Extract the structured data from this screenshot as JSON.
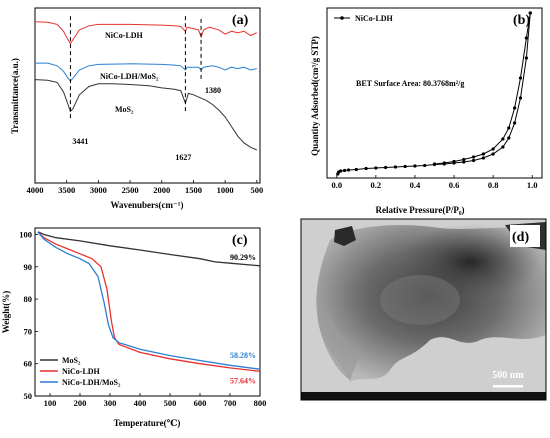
{
  "panels": {
    "a": {
      "letter": "(a)"
    },
    "b": {
      "letter": "(b)"
    },
    "c": {
      "letter": "(c)"
    },
    "d": {
      "letter": "(d)"
    }
  },
  "chart_data": [
    {
      "id": "a",
      "type": "line",
      "xlabel": "Wavenubers(cm⁻¹)",
      "ylabel": "Transmittance(a.u.)",
      "xlim": [
        4000,
        450
      ],
      "xticks": [
        "4000",
        "3500",
        "3000",
        "2500",
        "2000",
        "1500",
        "1000",
        "500"
      ],
      "series": [
        {
          "name": "NiCo-LDH",
          "color": "#e8312f",
          "points": [
            [
              4000,
              0.93
            ],
            [
              3800,
              0.925
            ],
            [
              3650,
              0.91
            ],
            [
              3550,
              0.86
            ],
            [
              3480,
              0.8
            ],
            [
              3441,
              0.77
            ],
            [
              3400,
              0.8
            ],
            [
              3300,
              0.87
            ],
            [
              3150,
              0.9
            ],
            [
              3000,
              0.91
            ],
            [
              2500,
              0.91
            ],
            [
              2000,
              0.905
            ],
            [
              1800,
              0.9
            ],
            [
              1700,
              0.895
            ],
            [
              1627,
              0.86
            ],
            [
              1600,
              0.89
            ],
            [
              1500,
              0.88
            ],
            [
              1420,
              0.87
            ],
            [
              1380,
              0.82
            ],
            [
              1340,
              0.87
            ],
            [
              1250,
              0.89
            ],
            [
              1100,
              0.87
            ],
            [
              1000,
              0.84
            ],
            [
              900,
              0.86
            ],
            [
              800,
              0.85
            ],
            [
              700,
              0.86
            ],
            [
              600,
              0.83
            ],
            [
              500,
              0.85
            ]
          ]
        },
        {
          "name": "NiCo-LDH/MoS₂",
          "color": "#2a7fd4",
          "points": [
            [
              4000,
              0.63
            ],
            [
              3800,
              0.63
            ],
            [
              3650,
              0.61
            ],
            [
              3550,
              0.57
            ],
            [
              3480,
              0.52
            ],
            [
              3441,
              0.5
            ],
            [
              3400,
              0.52
            ],
            [
              3300,
              0.58
            ],
            [
              3150,
              0.61
            ],
            [
              3000,
              0.62
            ],
            [
              2500,
              0.625
            ],
            [
              2000,
              0.62
            ],
            [
              1800,
              0.615
            ],
            [
              1700,
              0.61
            ],
            [
              1627,
              0.58
            ],
            [
              1600,
              0.6
            ],
            [
              1500,
              0.6
            ],
            [
              1420,
              0.6
            ],
            [
              1380,
              0.58
            ],
            [
              1340,
              0.6
            ],
            [
              1200,
              0.61
            ],
            [
              1100,
              0.6
            ],
            [
              1000,
              0.58
            ],
            [
              900,
              0.6
            ],
            [
              800,
              0.59
            ],
            [
              700,
              0.6
            ],
            [
              600,
              0.58
            ],
            [
              500,
              0.59
            ]
          ]
        },
        {
          "name": "MoS₂",
          "color": "#333333",
          "points": [
            [
              4000,
              0.51
            ],
            [
              3800,
              0.505
            ],
            [
              3650,
              0.49
            ],
            [
              3550,
              0.42
            ],
            [
              3480,
              0.33
            ],
            [
              3441,
              0.28
            ],
            [
              3400,
              0.3
            ],
            [
              3300,
              0.4
            ],
            [
              3150,
              0.46
            ],
            [
              3000,
              0.48
            ],
            [
              2800,
              0.48
            ],
            [
              2500,
              0.475
            ],
            [
              2200,
              0.465
            ],
            [
              2000,
              0.45
            ],
            [
              1800,
              0.44
            ],
            [
              1700,
              0.43
            ],
            [
              1627,
              0.34
            ],
            [
              1580,
              0.41
            ],
            [
              1500,
              0.4
            ],
            [
              1400,
              0.38
            ],
            [
              1300,
              0.36
            ],
            [
              1200,
              0.33
            ],
            [
              1100,
              0.29
            ],
            [
              1000,
              0.24
            ],
            [
              900,
              0.17
            ],
            [
              800,
              0.1
            ],
            [
              700,
              0.05
            ],
            [
              600,
              0.02
            ],
            [
              500,
              0.0
            ]
          ]
        }
      ],
      "annotations": [
        "3441",
        "1627",
        "1380"
      ]
    },
    {
      "id": "b",
      "type": "line",
      "xlabel": "Relative Pressure(P/P₀)",
      "ylabel": "Quantity Adsorbed(cm³/g STP)",
      "xlim": [
        -0.05,
        1.05
      ],
      "ylim": [
        0,
        340
      ],
      "xticks": [
        "0.0",
        "0.2",
        "0.4",
        "0.6",
        "0.8",
        "1.0"
      ],
      "annotation": "BET Surface Area: 80.3768m²/g",
      "series": [
        {
          "name": "NiCo-LDH",
          "color": "#000000",
          "adsorption": [
            [
              0.005,
              8
            ],
            [
              0.01,
              12
            ],
            [
              0.02,
              14
            ],
            [
              0.04,
              15
            ],
            [
              0.06,
              16
            ],
            [
              0.1,
              17
            ],
            [
              0.15,
              19
            ],
            [
              0.2,
              20
            ],
            [
              0.25,
              21
            ],
            [
              0.3,
              22
            ],
            [
              0.35,
              23
            ],
            [
              0.4,
              24
            ],
            [
              0.45,
              25
            ],
            [
              0.5,
              27
            ],
            [
              0.55,
              28
            ],
            [
              0.6,
              30
            ],
            [
              0.65,
              32
            ],
            [
              0.7,
              35
            ],
            [
              0.75,
              40
            ],
            [
              0.8,
              48
            ],
            [
              0.85,
              62
            ],
            [
              0.88,
              80
            ],
            [
              0.91,
              110
            ],
            [
              0.94,
              160
            ],
            [
              0.97,
              240
            ],
            [
              0.99,
              330
            ]
          ],
          "desorption": [
            [
              0.99,
              330
            ],
            [
              0.97,
              280
            ],
            [
              0.94,
              200
            ],
            [
              0.91,
              140
            ],
            [
              0.88,
              100
            ],
            [
              0.85,
              78
            ],
            [
              0.8,
              58
            ],
            [
              0.75,
              48
            ],
            [
              0.7,
              42
            ],
            [
              0.65,
              37
            ],
            [
              0.6,
              33
            ],
            [
              0.55,
              30
            ],
            [
              0.5,
              28
            ]
          ]
        }
      ]
    },
    {
      "id": "c",
      "type": "line",
      "xlabel": "Temperature(℃)",
      "ylabel": "Weight(%)",
      "xlim": [
        50,
        800
      ],
      "ylim": [
        50,
        102
      ],
      "xticks": [
        "100",
        "200",
        "300",
        "400",
        "500",
        "600",
        "700",
        "800"
      ],
      "yticks": [
        "50",
        "60",
        "70",
        "80",
        "90",
        "100"
      ],
      "series": [
        {
          "name": "MoS₂",
          "color": "#333333",
          "end_label": "90.29%",
          "points": [
            [
              40,
              100.5
            ],
            [
              60,
              100.8
            ],
            [
              80,
              100
            ],
            [
              120,
              99
            ],
            [
              200,
              98
            ],
            [
              300,
              96.5
            ],
            [
              400,
              95.2
            ],
            [
              500,
              93.8
            ],
            [
              600,
              92.5
            ],
            [
              650,
              91.5
            ],
            [
              700,
              91.1
            ],
            [
              800,
              90.29
            ]
          ]
        },
        {
          "name": "NiCo-LDH",
          "color": "#e8312f",
          "end_label": "57.64%",
          "points": [
            [
              40,
              100
            ],
            [
              60,
              100.7
            ],
            [
              80,
              99
            ],
            [
              120,
              97
            ],
            [
              160,
              95.5
            ],
            [
              200,
              94
            ],
            [
              240,
              92.5
            ],
            [
              270,
              90
            ],
            [
              290,
              83
            ],
            [
              305,
              73
            ],
            [
              315,
              68
            ],
            [
              330,
              66
            ],
            [
              400,
              63.5
            ],
            [
              500,
              61.5
            ],
            [
              600,
              60
            ],
            [
              700,
              58.7
            ],
            [
              800,
              57.64
            ]
          ]
        },
        {
          "name": "NiCo-LDH/MoS₂",
          "color": "#2a7fd4",
          "end_label": "58.28%",
          "points": [
            [
              40,
              100
            ],
            [
              60,
              100.7
            ],
            [
              80,
              98.5
            ],
            [
              120,
              96
            ],
            [
              160,
              94
            ],
            [
              200,
              92.5
            ],
            [
              230,
              91
            ],
            [
              260,
              87
            ],
            [
              280,
              79
            ],
            [
              295,
              72
            ],
            [
              310,
              68
            ],
            [
              330,
              66.5
            ],
            [
              400,
              64.5
            ],
            [
              500,
              62.5
            ],
            [
              600,
              61
            ],
            [
              700,
              59.5
            ],
            [
              800,
              58.28
            ]
          ]
        }
      ],
      "legend": "bottom-left"
    }
  ],
  "tem": {
    "scale_bar": "500 nm"
  }
}
